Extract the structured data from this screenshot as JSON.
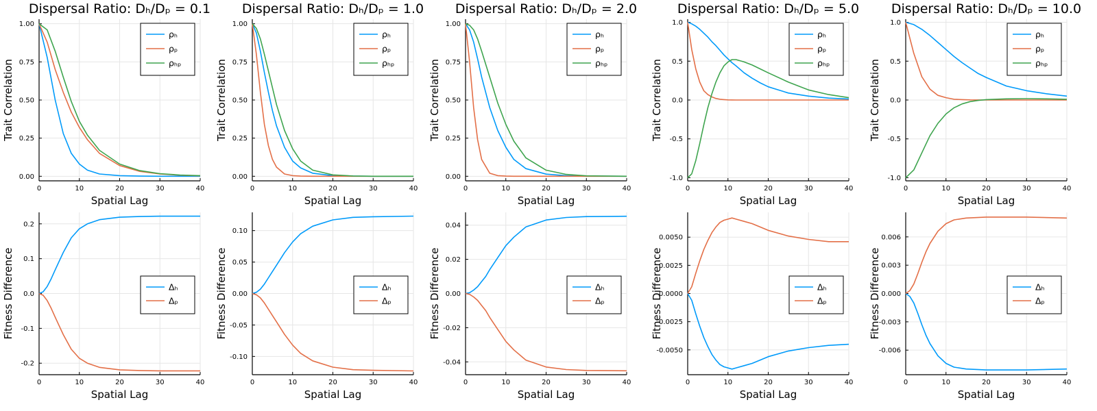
{
  "chart_data": [
    {
      "type": "line",
      "title": "Dispersal Ratio: Dₕ/Dₚ = 0.1",
      "xlabel": "Spatial Lag",
      "ylabel": "Trait Correlation",
      "xlim": [
        0,
        40
      ],
      "ylim": [
        -0.03,
        1.03
      ],
      "xticks": [
        "0",
        "10",
        "20",
        "30",
        "40"
      ],
      "xtick_values": [
        0,
        10,
        20,
        30,
        40
      ],
      "yticks": [
        "0.00",
        "0.25",
        "0.50",
        "0.75",
        "1.00"
      ],
      "ytick_values": [
        0,
        0.25,
        0.5,
        0.75,
        1.0
      ],
      "grid": true,
      "legend": "top-right",
      "x": [
        0,
        2,
        4,
        6,
        8,
        10,
        12,
        15,
        20,
        25,
        30,
        35,
        40
      ],
      "series": [
        {
          "name": "ρₕ",
          "color": "#009AFA",
          "values": [
            1.0,
            0.78,
            0.5,
            0.28,
            0.15,
            0.08,
            0.04,
            0.015,
            0.004,
            0.001,
            0,
            0,
            0
          ]
        },
        {
          "name": "ρₚ",
          "color": "#E36F47",
          "values": [
            1.0,
            0.88,
            0.7,
            0.55,
            0.42,
            0.32,
            0.24,
            0.15,
            0.07,
            0.032,
            0.015,
            0.007,
            0.003
          ]
        },
        {
          "name": "ρₕₚ",
          "color": "#3EA44E",
          "values": [
            1.0,
            0.96,
            0.82,
            0.65,
            0.49,
            0.36,
            0.27,
            0.17,
            0.08,
            0.037,
            0.017,
            0.008,
            0.004
          ]
        }
      ]
    },
    {
      "type": "line",
      "title": "Dispersal Ratio: Dₕ/Dₚ = 1.0",
      "xlabel": "Spatial Lag",
      "ylabel": "Trait Correlation",
      "xlim": [
        0,
        40
      ],
      "ylim": [
        -0.03,
        1.03
      ],
      "xticks": [
        "0",
        "10",
        "20",
        "30",
        "40"
      ],
      "xtick_values": [
        0,
        10,
        20,
        30,
        40
      ],
      "yticks": [
        "0.00",
        "0.25",
        "0.50",
        "0.75",
        "1.00"
      ],
      "ytick_values": [
        0,
        0.25,
        0.5,
        0.75,
        1.0
      ],
      "grid": true,
      "legend": "top-right",
      "x": [
        0,
        1,
        2,
        3,
        4,
        5,
        6,
        8,
        10,
        12,
        15,
        20,
        25,
        30,
        40
      ],
      "series": [
        {
          "name": "ρₕ",
          "color": "#009AFA",
          "values": [
            1.0,
            0.94,
            0.82,
            0.68,
            0.55,
            0.43,
            0.33,
            0.19,
            0.1,
            0.055,
            0.02,
            0.004,
            0.001,
            0,
            0
          ]
        },
        {
          "name": "ρₚ",
          "color": "#E36F47",
          "values": [
            1.0,
            0.8,
            0.55,
            0.34,
            0.2,
            0.11,
            0.06,
            0.015,
            0.004,
            0.001,
            0,
            0,
            0,
            0,
            0
          ]
        },
        {
          "name": "ρₕₚ",
          "color": "#3EA44E",
          "values": [
            1.0,
            0.97,
            0.9,
            0.8,
            0.69,
            0.58,
            0.47,
            0.3,
            0.18,
            0.1,
            0.04,
            0.009,
            0.002,
            0,
            0
          ]
        }
      ]
    },
    {
      "type": "line",
      "title": "Dispersal Ratio: Dₕ/Dₚ = 2.0",
      "xlabel": "Spatial Lag",
      "ylabel": "Trait Correlation",
      "xlim": [
        0,
        40
      ],
      "ylim": [
        -0.03,
        1.03
      ],
      "xticks": [
        "0",
        "10",
        "20",
        "30",
        "40"
      ],
      "xtick_values": [
        0,
        10,
        20,
        30,
        40
      ],
      "yticks": [
        "0.00",
        "0.25",
        "0.50",
        "0.75",
        "1.00"
      ],
      "ytick_values": [
        0,
        0.25,
        0.5,
        0.75,
        1.0
      ],
      "grid": true,
      "legend": "top-right",
      "x": [
        0,
        1,
        2,
        3,
        4,
        6,
        8,
        10,
        12,
        15,
        20,
        25,
        30,
        40
      ],
      "series": [
        {
          "name": "ρₕ",
          "color": "#009AFA",
          "values": [
            1.0,
            0.96,
            0.88,
            0.77,
            0.65,
            0.45,
            0.3,
            0.19,
            0.11,
            0.05,
            0.014,
            0.004,
            0.001,
            0
          ]
        },
        {
          "name": "ρₚ",
          "color": "#E36F47",
          "values": [
            1.0,
            0.75,
            0.45,
            0.24,
            0.11,
            0.02,
            0.004,
            0.001,
            0,
            0,
            0,
            0,
            0,
            0
          ]
        },
        {
          "name": "ρₕₚ",
          "color": "#3EA44E",
          "values": [
            1.0,
            0.99,
            0.96,
            0.9,
            0.82,
            0.65,
            0.48,
            0.34,
            0.23,
            0.12,
            0.04,
            0.012,
            0.003,
            0
          ]
        }
      ]
    },
    {
      "type": "line",
      "title": "Dispersal Ratio: Dₕ/Dₚ = 5.0",
      "xlabel": "Spatial Lag",
      "ylabel": "Trait Correlation",
      "xlim": [
        0,
        40
      ],
      "ylim": [
        -1.04,
        1.04
      ],
      "xticks": [
        "0",
        "10",
        "20",
        "30",
        "40"
      ],
      "xtick_values": [
        0,
        10,
        20,
        30,
        40
      ],
      "yticks": [
        "-1.0",
        "-0.5",
        "0.0",
        "0.5",
        "1.0"
      ],
      "ytick_values": [
        -1.0,
        -0.5,
        0,
        0.5,
        1.0
      ],
      "grid": true,
      "legend": "top-right",
      "x": [
        0,
        1,
        2,
        3,
        4,
        5,
        6,
        7,
        8,
        9,
        10,
        11,
        12,
        14,
        16,
        18,
        20,
        25,
        30,
        35,
        40
      ],
      "series": [
        {
          "name": "ρₕ",
          "color": "#009AFA",
          "values": [
            1.0,
            0.98,
            0.95,
            0.91,
            0.86,
            0.81,
            0.75,
            0.7,
            0.64,
            0.58,
            0.53,
            0.48,
            0.44,
            0.35,
            0.28,
            0.22,
            0.17,
            0.09,
            0.05,
            0.025,
            0.012
          ]
        },
        {
          "name": "ρₚ",
          "color": "#E36F47",
          "values": [
            1.0,
            0.65,
            0.4,
            0.23,
            0.12,
            0.07,
            0.04,
            0.02,
            0.01,
            0.005,
            0.002,
            0.001,
            0,
            0,
            0,
            0,
            0,
            0,
            0,
            0,
            0
          ]
        },
        {
          "name": "ρₕₚ",
          "color": "#3EA44E",
          "values": [
            -1.0,
            -0.95,
            -0.78,
            -0.56,
            -0.32,
            -0.1,
            0.08,
            0.23,
            0.35,
            0.44,
            0.49,
            0.52,
            0.52,
            0.49,
            0.45,
            0.4,
            0.35,
            0.23,
            0.13,
            0.07,
            0.03
          ]
        }
      ]
    },
    {
      "type": "line",
      "title": "Dispersal Ratio: Dₕ/Dₚ = 10.0",
      "xlabel": "Spatial Lag",
      "ylabel": "Trait Correlation",
      "xlim": [
        0,
        40
      ],
      "ylim": [
        -1.04,
        1.04
      ],
      "xticks": [
        "0",
        "10",
        "20",
        "30",
        "40"
      ],
      "xtick_values": [
        0,
        10,
        20,
        30,
        40
      ],
      "yticks": [
        "-1.0",
        "-0.5",
        "0.0",
        "0.5",
        "1.0"
      ],
      "ytick_values": [
        -1.0,
        -0.5,
        0,
        0.5,
        1.0
      ],
      "grid": true,
      "legend": "top-right",
      "x": [
        0,
        2,
        4,
        6,
        8,
        10,
        12,
        14,
        16,
        18,
        20,
        25,
        30,
        35,
        40
      ],
      "series": [
        {
          "name": "ρₕ",
          "color": "#009AFA",
          "values": [
            1.0,
            0.97,
            0.91,
            0.83,
            0.74,
            0.65,
            0.56,
            0.48,
            0.41,
            0.34,
            0.29,
            0.18,
            0.12,
            0.08,
            0.05
          ]
        },
        {
          "name": "ρₚ",
          "color": "#E36F47",
          "values": [
            1.0,
            0.6,
            0.3,
            0.14,
            0.06,
            0.03,
            0.01,
            0.005,
            0.002,
            0.001,
            0,
            0,
            0,
            0,
            0
          ]
        },
        {
          "name": "ρₕₚ",
          "color": "#3EA44E",
          "values": [
            -1.0,
            -0.9,
            -0.68,
            -0.46,
            -0.3,
            -0.18,
            -0.1,
            -0.05,
            -0.02,
            -0.005,
            0.005,
            0.015,
            0.018,
            0.015,
            0.01
          ]
        }
      ]
    },
    {
      "type": "line",
      "xlabel": "Spatial Lag",
      "ylabel": "Fitness Difference",
      "xlim": [
        0,
        40
      ],
      "ylim": [
        -0.233,
        0.233
      ],
      "xticks": [
        "0",
        "10",
        "20",
        "30",
        "40"
      ],
      "xtick_values": [
        0,
        10,
        20,
        30,
        40
      ],
      "yticks": [
        "-0.2",
        "-0.1",
        "0.0",
        "0.1",
        "0.2"
      ],
      "ytick_values": [
        -0.2,
        -0.1,
        0,
        0.1,
        0.2
      ],
      "grid": true,
      "legend": "right",
      "x": [
        0,
        1,
        2,
        3,
        4,
        5,
        6,
        8,
        10,
        12,
        15,
        20,
        25,
        30,
        40
      ],
      "series": [
        {
          "name": "Δₕ",
          "color": "#009AFA",
          "values": [
            0,
            0.005,
            0.02,
            0.042,
            0.068,
            0.093,
            0.118,
            0.16,
            0.186,
            0.2,
            0.212,
            0.219,
            0.221,
            0.222,
            0.222
          ]
        },
        {
          "name": "Δₚ",
          "color": "#E36F47",
          "values": [
            0,
            -0.005,
            -0.02,
            -0.042,
            -0.068,
            -0.093,
            -0.118,
            -0.16,
            -0.186,
            -0.2,
            -0.212,
            -0.219,
            -0.221,
            -0.222,
            -0.222
          ]
        }
      ]
    },
    {
      "type": "line",
      "xlabel": "Spatial Lag",
      "ylabel": "Fitness Difference",
      "xlim": [
        0,
        40
      ],
      "ylim": [
        -0.129,
        0.129
      ],
      "xticks": [
        "0",
        "10",
        "20",
        "30",
        "40"
      ],
      "xtick_values": [
        0,
        10,
        20,
        30,
        40
      ],
      "yticks": [
        "-0.10",
        "-0.05",
        "0.00",
        "0.05",
        "0.10"
      ],
      "ytick_values": [
        -0.1,
        -0.05,
        0,
        0.05,
        0.1
      ],
      "grid": true,
      "legend": "right",
      "x": [
        0,
        1,
        2,
        3,
        4,
        5,
        6,
        8,
        10,
        12,
        15,
        20,
        25,
        30,
        40
      ],
      "series": [
        {
          "name": "Δₕ",
          "color": "#009AFA",
          "values": [
            0,
            0.002,
            0.007,
            0.015,
            0.025,
            0.035,
            0.045,
            0.065,
            0.082,
            0.095,
            0.107,
            0.117,
            0.121,
            0.122,
            0.123
          ]
        },
        {
          "name": "Δₚ",
          "color": "#E36F47",
          "values": [
            0,
            -0.002,
            -0.007,
            -0.015,
            -0.025,
            -0.035,
            -0.045,
            -0.065,
            -0.082,
            -0.095,
            -0.107,
            -0.117,
            -0.121,
            -0.122,
            -0.123
          ]
        }
      ]
    },
    {
      "type": "line",
      "xlabel": "Spatial Lag",
      "ylabel": "Fitness Difference",
      "xlim": [
        0,
        40
      ],
      "ylim": [
        -0.0475,
        0.0475
      ],
      "xticks": [
        "0",
        "10",
        "20",
        "30",
        "40"
      ],
      "xtick_values": [
        0,
        10,
        20,
        30,
        40
      ],
      "yticks": [
        "-0.04",
        "-0.02",
        "0.00",
        "0.02",
        "0.04"
      ],
      "ytick_values": [
        -0.04,
        -0.02,
        0,
        0.02,
        0.04
      ],
      "grid": true,
      "legend": "right",
      "x": [
        0,
        1,
        2,
        3,
        4,
        5,
        6,
        8,
        10,
        12,
        15,
        20,
        25,
        30,
        40
      ],
      "series": [
        {
          "name": "Δₕ",
          "color": "#009AFA",
          "values": [
            0,
            0.0005,
            0.002,
            0.004,
            0.007,
            0.01,
            0.014,
            0.021,
            0.028,
            0.033,
            0.039,
            0.043,
            0.0445,
            0.045,
            0.0452
          ]
        },
        {
          "name": "Δₚ",
          "color": "#E36F47",
          "values": [
            0,
            -0.0005,
            -0.002,
            -0.004,
            -0.007,
            -0.01,
            -0.014,
            -0.021,
            -0.028,
            -0.033,
            -0.039,
            -0.043,
            -0.0445,
            -0.045,
            -0.0452
          ]
        }
      ]
    },
    {
      "type": "line",
      "xlabel": "Spatial Lag",
      "ylabel": "Fitness Difference",
      "xlim": [
        0,
        40
      ],
      "ylim": [
        -0.0072,
        0.0072
      ],
      "xticks": [
        "0",
        "10",
        "20",
        "30",
        "40"
      ],
      "xtick_values": [
        0,
        10,
        20,
        30,
        40
      ],
      "yticks": [
        "-0.0050",
        "-0.0025",
        "0.0000",
        "0.0025",
        "0.0050"
      ],
      "ytick_values": [
        -0.005,
        -0.0025,
        0,
        0.0025,
        0.005
      ],
      "grid": true,
      "legend": "right",
      "x": [
        0,
        1,
        2,
        3,
        4,
        5,
        6,
        7,
        8,
        9,
        10,
        11,
        12,
        14,
        16,
        18,
        20,
        25,
        30,
        35,
        40
      ],
      "series": [
        {
          "name": "Δₕ",
          "color": "#009AFA",
          "values": [
            0,
            -0.0006,
            -0.0018,
            -0.0029,
            -0.0039,
            -0.0047,
            -0.0054,
            -0.0059,
            -0.0063,
            -0.0065,
            -0.0066,
            -0.0067,
            -0.0066,
            -0.0064,
            -0.0062,
            -0.0059,
            -0.0056,
            -0.0051,
            -0.0048,
            -0.0046,
            -0.0045
          ]
        },
        {
          "name": "Δₚ",
          "color": "#E36F47",
          "values": [
            0,
            0.0006,
            0.0018,
            0.0029,
            0.0039,
            0.0047,
            0.0054,
            0.0059,
            0.0063,
            0.0065,
            0.0066,
            0.0067,
            0.0066,
            0.0064,
            0.0062,
            0.0059,
            0.0056,
            0.0051,
            0.0048,
            0.0046,
            0.0046
          ]
        }
      ]
    },
    {
      "type": "line",
      "xlabel": "Spatial Lag",
      "ylabel": "Fitness Difference",
      "xlim": [
        0,
        40
      ],
      "ylim": [
        -0.0086,
        0.0086
      ],
      "xticks": [
        "0",
        "10",
        "20",
        "30",
        "40"
      ],
      "xtick_values": [
        0,
        10,
        20,
        30,
        40
      ],
      "yticks": [
        "-0.006",
        "-0.003",
        "0.000",
        "0.003",
        "0.006"
      ],
      "ytick_values": [
        -0.006,
        -0.003,
        0,
        0.003,
        0.006
      ],
      "grid": true,
      "legend": "right",
      "x": [
        0,
        1,
        2,
        3,
        4,
        5,
        6,
        8,
        10,
        12,
        15,
        20,
        25,
        30,
        40
      ],
      "series": [
        {
          "name": "Δₕ",
          "color": "#009AFA",
          "values": [
            0,
            -0.0003,
            -0.001,
            -0.0021,
            -0.0033,
            -0.0044,
            -0.0053,
            -0.0066,
            -0.0074,
            -0.0078,
            -0.008,
            -0.0081,
            -0.0081,
            -0.0081,
            -0.008
          ]
        },
        {
          "name": "Δₚ",
          "color": "#E36F47",
          "values": [
            0,
            0.0003,
            0.001,
            0.0021,
            0.0033,
            0.0044,
            0.0053,
            0.0066,
            0.0074,
            0.0078,
            0.008,
            0.0081,
            0.0081,
            0.0081,
            0.008
          ]
        }
      ]
    }
  ]
}
